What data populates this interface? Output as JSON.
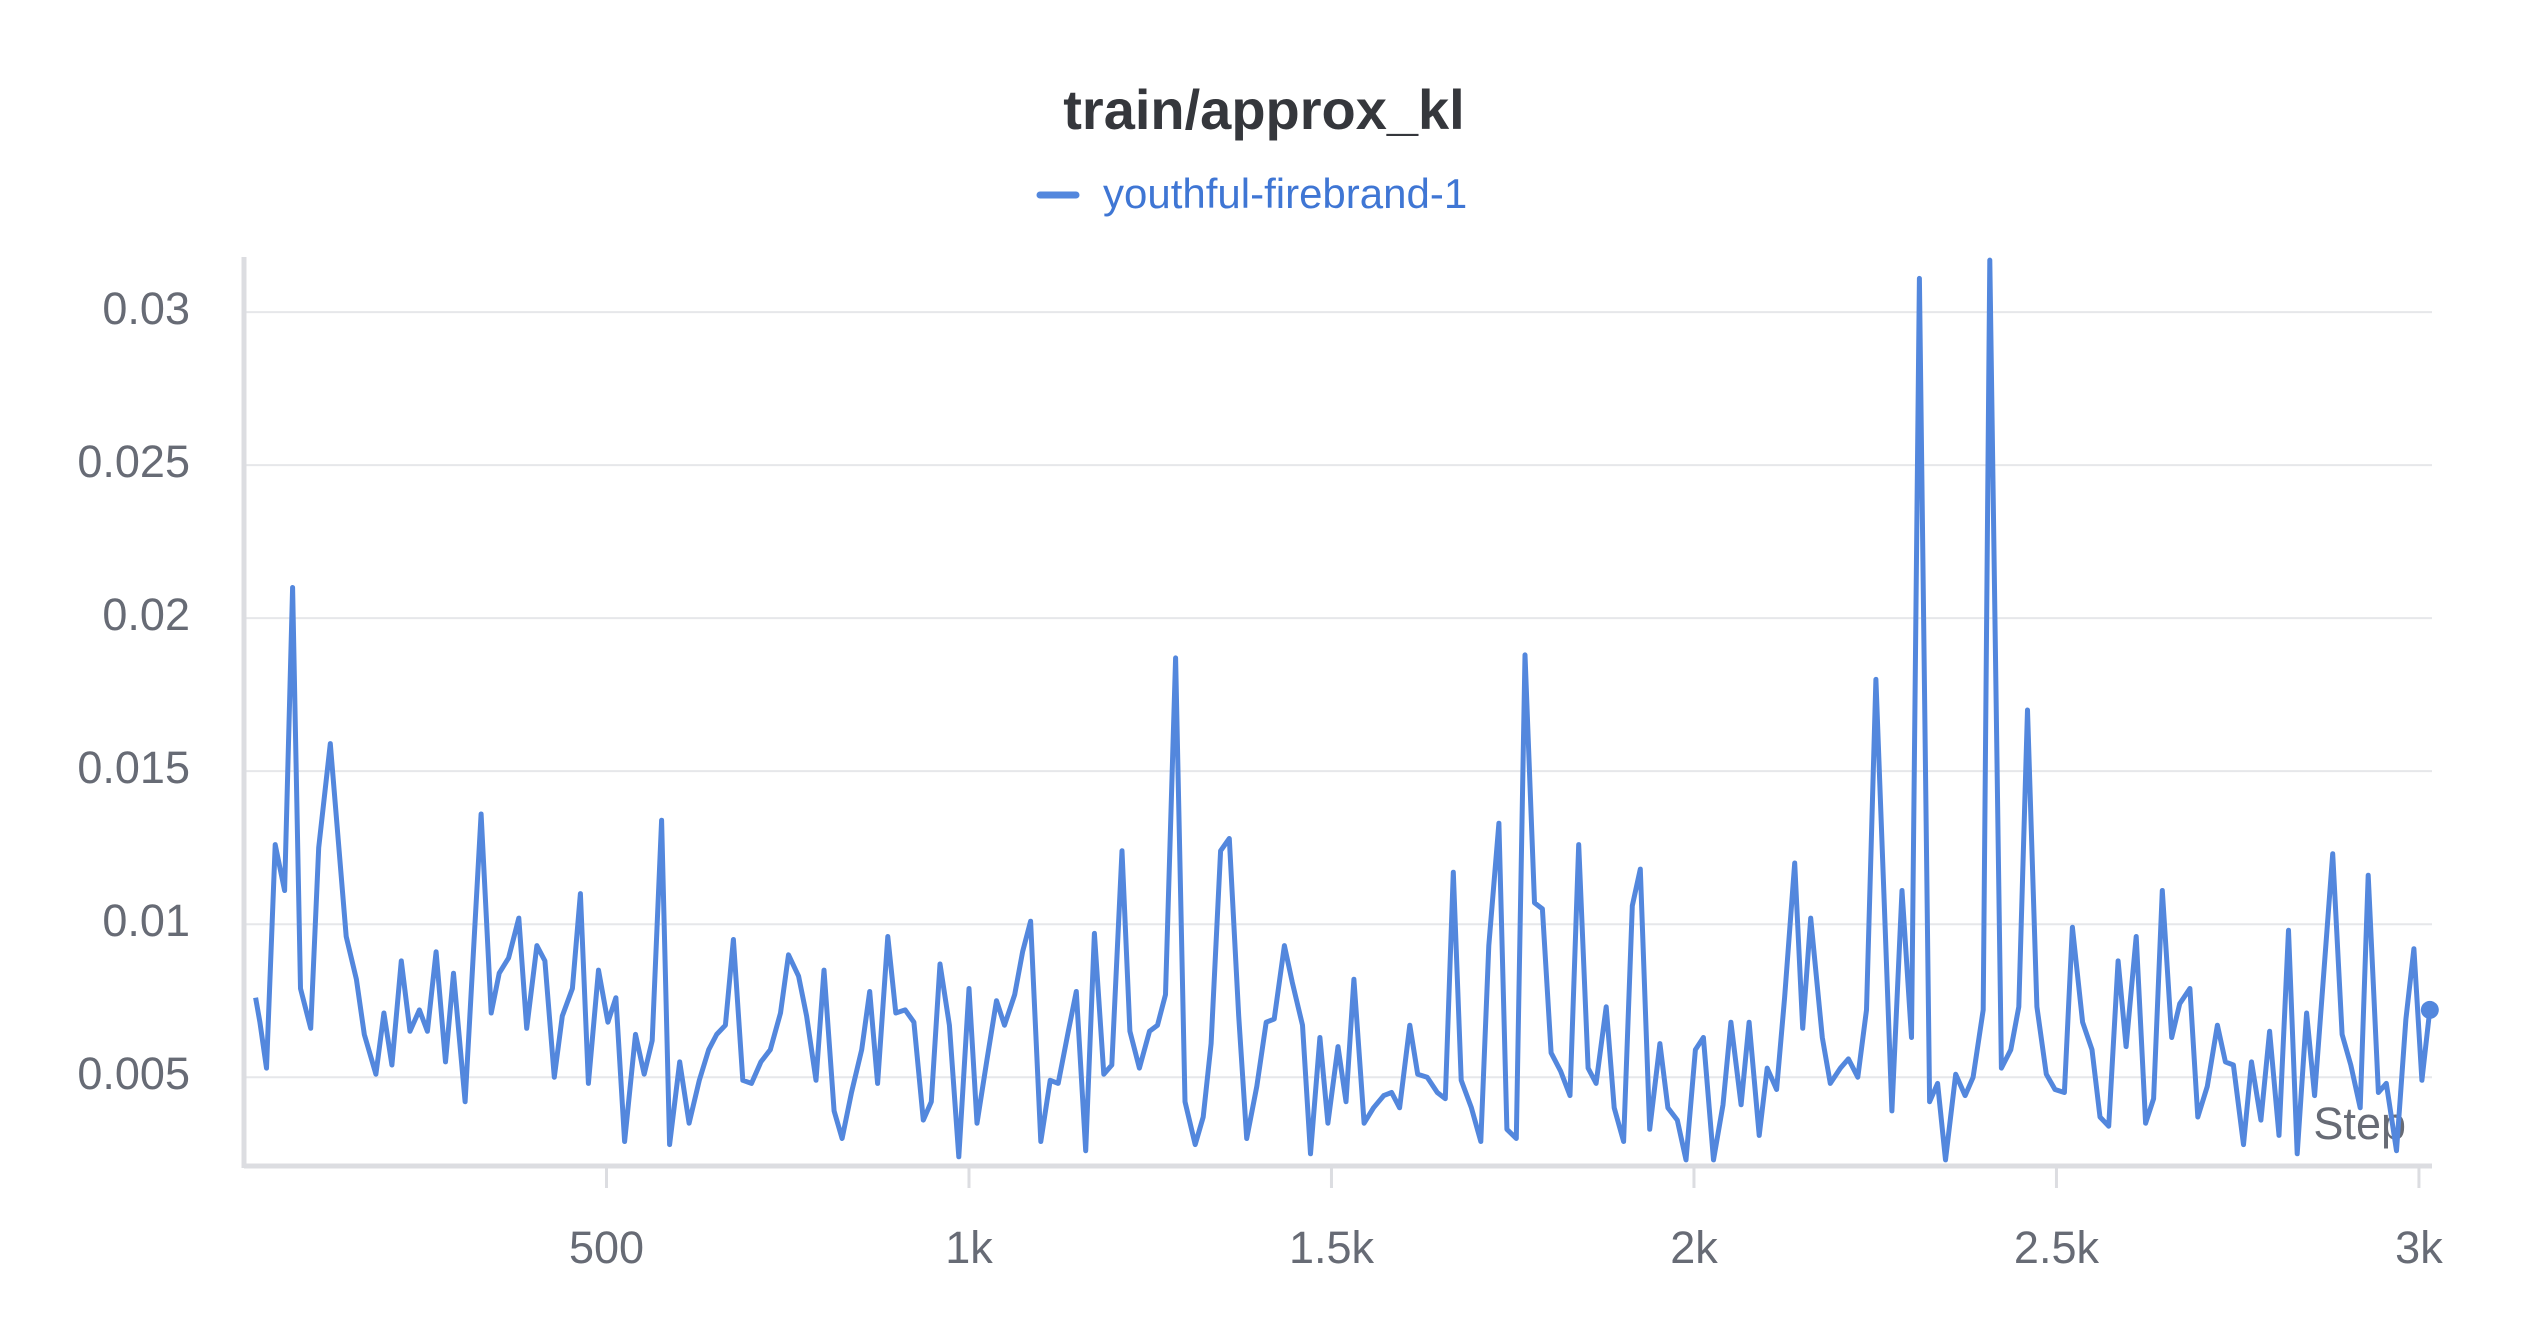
{
  "chart_data": {
    "type": "line",
    "title": "train/approx_kl",
    "x_label": "Step",
    "xlim": [
      0,
      3018
    ],
    "ylim": [
      0.0021,
      0.0318
    ],
    "xticks": [
      500,
      {
        "value": 1000,
        "label": "1k"
      },
      {
        "value": 1500,
        "label": "1.5k"
      },
      {
        "value": 2000,
        "label": "2k"
      },
      {
        "value": 2500,
        "label": "2.5k"
      },
      {
        "value": 3000,
        "label": "3k"
      }
    ],
    "yticks": [
      0.005,
      0.01,
      0.015,
      0.02,
      0.025,
      0.03
    ],
    "grid": true,
    "legend_position": "top",
    "x": [
      16,
      22,
      31,
      43,
      56,
      67,
      78,
      92,
      103,
      119,
      141,
      155,
      166,
      182,
      193,
      204,
      217,
      229,
      242,
      253,
      265,
      278,
      289,
      305,
      327,
      341,
      352,
      365,
      379,
      390,
      404,
      415,
      428,
      439,
      453,
      464,
      475,
      489,
      502,
      513,
      525,
      540,
      552,
      563,
      576,
      587,
      601,
      614,
      628,
      641,
      652,
      664,
      675,
      688,
      700,
      713,
      726,
      740,
      751,
      765,
      776,
      789,
      800,
      814,
      825,
      838,
      852,
      863,
      874,
      888,
      899,
      912,
      924,
      937,
      948,
      960,
      973,
      986,
      1000,
      1011,
      1025,
      1038,
      1049,
      1063,
      1074,
      1085,
      1099,
      1112,
      1123,
      1137,
      1148,
      1161,
      1173,
      1186,
      1197,
      1211,
      1222,
      1235,
      1249,
      1260,
      1271,
      1285,
      1298,
      1312,
      1323,
      1334,
      1347,
      1359,
      1372,
      1383,
      1397,
      1410,
      1421,
      1435,
      1446,
      1460,
      1471,
      1484,
      1495,
      1509,
      1520,
      1531,
      1545,
      1558,
      1572,
      1583,
      1594,
      1608,
      1619,
      1632,
      1646,
      1657,
      1668,
      1679,
      1693,
      1706,
      1717,
      1731,
      1742,
      1755,
      1767,
      1780,
      1791,
      1803,
      1816,
      1829,
      1841,
      1854,
      1865,
      1879,
      1890,
      1903,
      1915,
      1926,
      1939,
      1953,
      1964,
      1977,
      1989,
      2002,
      2013,
      2027,
      2040,
      2051,
      2065,
      2076,
      2090,
      2101,
      2114,
      2125,
      2139,
      2150,
      2161,
      2177,
      2188,
      2202,
      2213,
      2226,
      2238,
      2251,
      2262,
      2273,
      2287,
      2300,
      2311,
      2325,
      2336,
      2347,
      2361,
      2374,
      2385,
      2399,
      2408,
      2424,
      2437,
      2448,
      2460,
      2473,
      2486,
      2498,
      2511,
      2522,
      2536,
      2549,
      2560,
      2572,
      2585,
      2596,
      2610,
      2623,
      2634,
      2646,
      2659,
      2670,
      2684,
      2695,
      2708,
      2722,
      2733,
      2744,
      2758,
      2769,
      2782,
      2794,
      2807,
      2820,
      2832,
      2845,
      2856,
      2881,
      2894,
      2906,
      2919,
      2930,
      2944,
      2955,
      2969,
      2982,
      2993,
      3004,
      3015
    ],
    "series": [
      {
        "name": "youthful-firebrand-1",
        "color": "#5387dd",
        "values": [
          0.0076,
          0.0068,
          0.0053,
          0.0126,
          0.0111,
          0.021,
          0.0079,
          0.0066,
          0.0125,
          0.0159,
          0.0096,
          0.0082,
          0.0064,
          0.0051,
          0.0071,
          0.0054,
          0.0088,
          0.0065,
          0.0072,
          0.0065,
          0.0091,
          0.0055,
          0.0084,
          0.0042,
          0.0136,
          0.0071,
          0.0084,
          0.0089,
          0.0102,
          0.0066,
          0.0093,
          0.0088,
          0.005,
          0.007,
          0.0079,
          0.011,
          0.0048,
          0.0085,
          0.0068,
          0.0076,
          0.0029,
          0.0064,
          0.0051,
          0.0062,
          0.0134,
          0.0028,
          0.0055,
          0.0035,
          0.0049,
          0.0059,
          0.0064,
          0.0067,
          0.0095,
          0.0049,
          0.0048,
          0.0055,
          0.0059,
          0.0071,
          0.009,
          0.0083,
          0.007,
          0.0049,
          0.0085,
          0.0039,
          0.003,
          0.0045,
          0.0059,
          0.0078,
          0.0048,
          0.0096,
          0.0071,
          0.0072,
          0.0068,
          0.0036,
          0.0042,
          0.0087,
          0.0067,
          0.0024,
          0.0079,
          0.0035,
          0.0056,
          0.0075,
          0.0067,
          0.0077,
          0.0091,
          0.0101,
          0.0029,
          0.0049,
          0.0048,
          0.0065,
          0.0078,
          0.0026,
          0.0097,
          0.0051,
          0.0054,
          0.0124,
          0.0065,
          0.0053,
          0.0065,
          0.0067,
          0.0077,
          0.0187,
          0.0042,
          0.0028,
          0.0037,
          0.0061,
          0.0124,
          0.0128,
          0.007,
          0.003,
          0.0047,
          0.0068,
          0.0069,
          0.0093,
          0.0081,
          0.0067,
          0.0025,
          0.0063,
          0.0035,
          0.006,
          0.0042,
          0.0082,
          0.0035,
          0.004,
          0.0044,
          0.0045,
          0.004,
          0.0067,
          0.0051,
          0.005,
          0.0045,
          0.0043,
          0.0117,
          0.0049,
          0.004,
          0.0029,
          0.0093,
          0.0133,
          0.0033,
          0.003,
          0.0188,
          0.0107,
          0.0105,
          0.0058,
          0.0052,
          0.0044,
          0.0126,
          0.0053,
          0.0048,
          0.0073,
          0.004,
          0.0029,
          0.0106,
          0.0118,
          0.0033,
          0.0061,
          0.004,
          0.0036,
          0.0023,
          0.0059,
          0.0063,
          0.0023,
          0.0041,
          0.0068,
          0.0041,
          0.0068,
          0.0031,
          0.0053,
          0.0046,
          0.0076,
          0.012,
          0.0066,
          0.0102,
          0.0063,
          0.0048,
          0.0053,
          0.0056,
          0.005,
          0.0072,
          0.018,
          0.011,
          0.0039,
          0.0111,
          0.0063,
          0.0311,
          0.0042,
          0.0048,
          0.0023,
          0.0051,
          0.0044,
          0.005,
          0.0072,
          0.0317,
          0.0053,
          0.0059,
          0.0073,
          0.017,
          0.0073,
          0.0051,
          0.0046,
          0.0045,
          0.0099,
          0.0068,
          0.0059,
          0.0037,
          0.0034,
          0.0088,
          0.006,
          0.0096,
          0.0035,
          0.0043,
          0.0111,
          0.0063,
          0.0074,
          0.0079,
          0.0037,
          0.0047,
          0.0067,
          0.0055,
          0.0054,
          0.0028,
          0.0055,
          0.0036,
          0.0065,
          0.0031,
          0.0098,
          0.0025,
          0.0071,
          0.0044,
          0.0123,
          0.0064,
          0.0054,
          0.004,
          0.0116,
          0.0045,
          0.0048,
          0.0026,
          0.0069,
          0.0092,
          0.0049,
          0.0072
        ]
      }
    ]
  }
}
